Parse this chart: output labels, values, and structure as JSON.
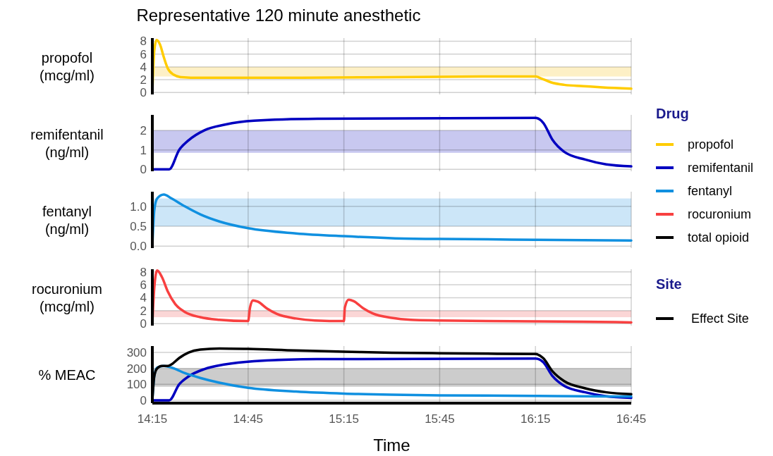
{
  "chart_data": [
    {
      "type": "line",
      "title": "Representative 120 minute anesthetic",
      "ylabel": "propofol\n(mcg/ml)",
      "legend": "right",
      "legend_title": "Drug",
      "grid": true,
      "tick_labels": "y",
      "xlim": [
        14.25,
        16.75
      ],
      "xticks": [
        14.25,
        14.75,
        15.25,
        15.75,
        16.25,
        16.75
      ],
      "ylim": [
        -0.3,
        8.5
      ],
      "yticks": [
        0,
        2,
        4,
        6,
        8
      ],
      "bands": [
        {
          "axis": "y",
          "from": 2.5,
          "to": 4,
          "color": "#fdf0c6"
        }
      ],
      "x": [
        14.25,
        14.26,
        14.272,
        14.29,
        14.31,
        14.33,
        14.36,
        14.4,
        14.5,
        15.0,
        15.5,
        16.0,
        16.25,
        16.28,
        16.33,
        16.4,
        16.5,
        16.6,
        16.75
      ],
      "series": [
        {
          "name": "propofol",
          "color": "#ffcc00",
          "values": [
            0,
            6.5,
            8.2,
            7.5,
            5.5,
            3.8,
            2.8,
            2.4,
            2.3,
            2.3,
            2.4,
            2.5,
            2.5,
            2.2,
            1.6,
            1.2,
            1.0,
            0.8,
            0.6
          ]
        }
      ]
    },
    {
      "type": "line",
      "ylabel": "remifentanil\n(ng/ml)",
      "grid": true,
      "tick_labels": "y",
      "xlim": [
        14.25,
        16.75
      ],
      "xticks": [
        14.25,
        14.75,
        15.25,
        15.75,
        16.25,
        16.75
      ],
      "ylim": [
        -0.1,
        2.8
      ],
      "yticks": [
        0,
        1,
        2
      ],
      "bands": [
        {
          "axis": "y",
          "from": 0.85,
          "to": 2,
          "color": "#c8c8f0"
        }
      ],
      "x": [
        14.25,
        14.338,
        14.39,
        14.44,
        14.52,
        14.63,
        14.78,
        15.11,
        16.25,
        16.29,
        16.34,
        16.4,
        16.51,
        16.62,
        16.75
      ],
      "series": [
        {
          "name": "remifentanil",
          "color": "#0000c0",
          "values": [
            0,
            0,
            1,
            1.5,
            2,
            2.3,
            2.5,
            2.6,
            2.65,
            2.4,
            1.5,
            0.9,
            0.5,
            0.25,
            0.15
          ]
        }
      ]
    },
    {
      "type": "line",
      "ylabel": "fentanyl\n(ng/ml)",
      "grid": true,
      "tick_labels": "y",
      "xlim": [
        14.25,
        16.75
      ],
      "xticks": [
        14.25,
        14.75,
        15.25,
        15.75,
        16.25,
        16.75
      ],
      "ylim": [
        -0.05,
        1.37
      ],
      "yticks": [
        {
          "value": 0,
          "label": "0.0"
        },
        {
          "value": 0.5,
          "label": "0.5"
        },
        {
          "value": 1,
          "label": "1.0"
        }
      ],
      "bands": [
        {
          "axis": "y",
          "from": 0.5,
          "to": 1.2,
          "color": "#cce6f8"
        }
      ],
      "x": [
        14.25,
        14.26,
        14.275,
        14.31,
        14.35,
        14.42,
        14.5,
        14.6,
        14.75,
        15.0,
        15.25,
        15.5,
        15.75,
        16.0,
        16.25,
        16.5,
        16.75
      ],
      "series": [
        {
          "name": "fentanyl",
          "color": "#1090e0",
          "values": [
            0,
            0.9,
            1.2,
            1.3,
            1.2,
            1.0,
            0.8,
            0.62,
            0.45,
            0.32,
            0.25,
            0.2,
            0.18,
            0.17,
            0.16,
            0.15,
            0.14
          ]
        }
      ]
    },
    {
      "type": "line",
      "ylabel": "rocuronium\n(mcg/ml)",
      "grid": true,
      "tick_labels": "y",
      "xlim": [
        14.25,
        16.75
      ],
      "xticks": [
        14.25,
        14.75,
        15.25,
        15.75,
        16.25,
        16.75
      ],
      "ylim": [
        -0.3,
        8.4
      ],
      "yticks": [
        0,
        2,
        4,
        6,
        8
      ],
      "bands": [
        {
          "axis": "y",
          "from": 1,
          "to": 2,
          "color": "#fbd6d6"
        }
      ],
      "x": [
        14.25,
        14.26,
        14.275,
        14.3,
        14.33,
        14.37,
        14.42,
        14.5,
        14.6,
        14.75,
        14.76,
        14.775,
        14.8,
        14.85,
        14.9,
        15.0,
        15.1,
        15.25,
        15.255,
        15.275,
        15.3,
        15.35,
        15.4,
        15.5,
        15.6,
        15.75,
        16.0,
        16.5,
        16.75
      ],
      "series": [
        {
          "name": "rocuronium",
          "color": "#f84040",
          "values": [
            0,
            5.5,
            8.2,
            7.2,
            5,
            3,
            1.8,
            1,
            0.6,
            0.4,
            2.5,
            3.6,
            3.4,
            2.3,
            1.5,
            0.8,
            0.5,
            0.4,
            2.5,
            3.7,
            3.5,
            2.4,
            1.6,
            0.9,
            0.6,
            0.5,
            0.4,
            0.3,
            0.2
          ]
        }
      ]
    },
    {
      "type": "line",
      "ylabel": "% MEAC",
      "xlabel": "Time",
      "legend_title": "Site",
      "annotations": [
        "Effect Site"
      ],
      "grid": true,
      "xlim": [
        14.25,
        16.75
      ],
      "xticks": [
        {
          "value": 14.25,
          "label": "14:15"
        },
        {
          "value": 14.75,
          "label": "14:45"
        },
        {
          "value": 15.25,
          "label": "15:15"
        },
        {
          "value": 15.75,
          "label": "15:45"
        },
        {
          "value": 16.25,
          "label": "16:15"
        },
        {
          "value": 16.75,
          "label": "16:45"
        }
      ],
      "ylim": [
        -18,
        340
      ],
      "yticks": [
        0,
        100,
        200,
        300
      ],
      "bands": [
        {
          "axis": "y",
          "from": 85,
          "to": 200,
          "color": "#cccccc"
        }
      ],
      "series": [
        {
          "color": "#0000c0",
          "x": [
            14.25,
            14.338,
            14.39,
            14.44,
            14.52,
            14.63,
            14.78,
            15.11,
            16.25,
            16.29,
            16.34,
            16.4,
            16.51,
            16.62,
            16.75
          ],
          "values": [
            0,
            0,
            100,
            150,
            195,
            225,
            245,
            258,
            262,
            240,
            150,
            90,
            50,
            25,
            15
          ]
        },
        {
          "color": "#1090e0",
          "x": [
            14.25,
            14.26,
            14.275,
            14.31,
            14.35,
            14.42,
            14.5,
            14.6,
            14.75,
            15.0,
            15.25,
            15.5,
            15.75,
            16.0,
            16.25,
            16.5,
            16.75
          ],
          "values": [
            0,
            150,
            205,
            215,
            205,
            170,
            140,
            110,
            78,
            55,
            42,
            35,
            31,
            29,
            27,
            25,
            24
          ]
        },
        {
          "name": "total opioid",
          "color": "#000000",
          "x": [
            14.25,
            14.26,
            14.275,
            14.3,
            14.33,
            14.35,
            14.39,
            14.44,
            14.5,
            14.6,
            14.75,
            15.0,
            15.25,
            15.5,
            15.75,
            16.0,
            16.25,
            16.29,
            16.34,
            16.4,
            16.51,
            16.62,
            16.75
          ],
          "values": [
            0,
            150,
            200,
            215,
            215,
            225,
            265,
            300,
            318,
            325,
            322,
            312,
            305,
            298,
            295,
            292,
            290,
            265,
            180,
            120,
            75,
            50,
            38
          ]
        }
      ]
    }
  ]
}
